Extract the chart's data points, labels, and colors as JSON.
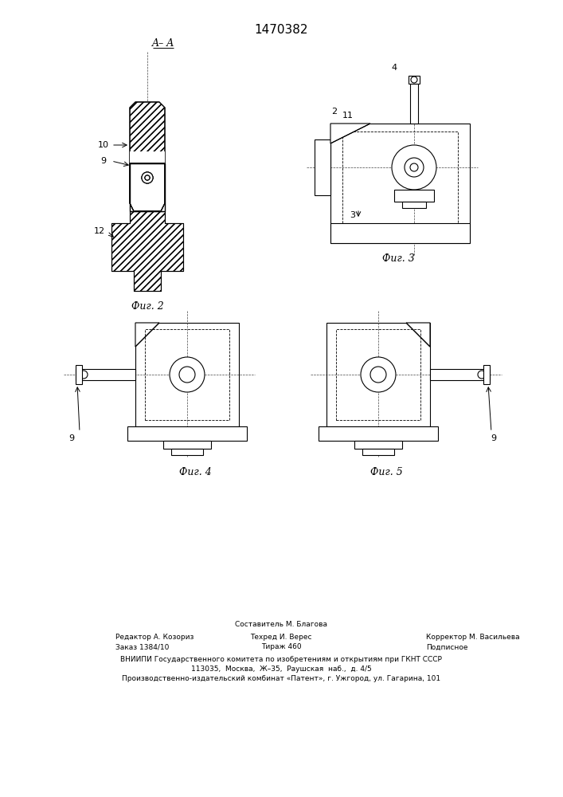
{
  "title": "1470382",
  "title_fontsize": 11,
  "bg_color": "#ffffff",
  "line_color": "#000000",
  "fig2_caption": "Фиг. 2",
  "fig3_caption": "Фиг. 3",
  "fig4_caption": "Фиг. 4",
  "fig5_caption": "Фиг. 5",
  "aa_label": "A– A",
  "footer_line1": "Составитель М. Благова",
  "footer_line2_left": "Редактор А. Козориз",
  "footer_line2_mid": "Техред И. Верес",
  "footer_line2_right": "Корректор М. Васильева",
  "footer_line3_left": "Заказ 1384/10",
  "footer_line3_mid": "Тираж 460",
  "footer_line3_right": "Подписное",
  "footer_line4": "ВНИИПИ Государственного комитета по изобретениям и открытиям при ГКНТ СССР",
  "footer_line5": "113035,  Москва,  Ж–35,  Раушская  наб.,  д. 4/5",
  "footer_line6": "Производственно-издательский комбинат «Патент», г. Ужгород, ул. Гагарина, 101"
}
